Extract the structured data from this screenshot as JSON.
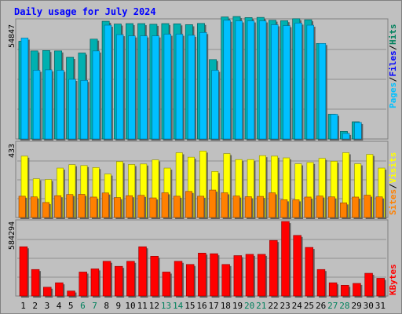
{
  "title": "Daily usage for July 2024",
  "colors": {
    "background": "#c0c0c0",
    "border": "#808080",
    "title": "#0000ff",
    "hits": "#00805c",
    "files": "#0000ff",
    "pages": "#00c0ff",
    "visits": "#ffff00",
    "sites": "#ff8000",
    "kbytes": "#ff0000",
    "weekend_label": "#00805c",
    "weekday_label": "#000000"
  },
  "chart_data": [
    {
      "type": "bar",
      "categories": [
        "1",
        "2",
        "3",
        "4",
        "5",
        "6",
        "7",
        "8",
        "9",
        "10",
        "11",
        "12",
        "13",
        "14",
        "15",
        "16",
        "17",
        "18",
        "19",
        "20",
        "21",
        "22",
        "23",
        "24",
        "25",
        "26",
        "27",
        "28",
        "29",
        "30",
        "31"
      ],
      "weekend_days": [
        "6",
        "7",
        "13",
        "14",
        "20",
        "21",
        "27",
        "28"
      ],
      "max_label": "54847",
      "ylim": [
        0,
        54847
      ],
      "series": [
        {
          "name": "Hits",
          "values": [
            45500,
            41000,
            41200,
            41000,
            38000,
            40000,
            46500,
            54800,
            53500,
            53700,
            53700,
            53400,
            53700,
            53600,
            53200,
            53800,
            37000,
            56800,
            57000,
            56500,
            56600,
            55300,
            55100,
            56000,
            55500,
            44500,
            11500,
            3500,
            8000,
            0,
            0
          ]
        },
        {
          "name": "Files",
          "values": [
            45500,
            41000,
            41200,
            41000,
            38000,
            40000,
            46500,
            54800,
            53500,
            53700,
            53700,
            53400,
            53700,
            53600,
            53200,
            53800,
            37000,
            56800,
            57000,
            56500,
            56600,
            55300,
            55100,
            56000,
            55500,
            44500,
            11500,
            3500,
            8000,
            0,
            0
          ]
        },
        {
          "name": "Pages",
          "values": [
            47000,
            32000,
            32200,
            32000,
            27800,
            27300,
            41000,
            53000,
            48600,
            48000,
            48000,
            48000,
            48800,
            48800,
            48300,
            49600,
            32000,
            55300,
            55000,
            55000,
            55000,
            53200,
            52800,
            54000,
            53000,
            44500,
            11500,
            2600,
            7700,
            0,
            0
          ]
        }
      ]
    },
    {
      "type": "bar",
      "categories": [
        "1",
        "2",
        "3",
        "4",
        "5",
        "6",
        "7",
        "8",
        "9",
        "10",
        "11",
        "12",
        "13",
        "14",
        "15",
        "16",
        "17",
        "18",
        "19",
        "20",
        "21",
        "22",
        "23",
        "24",
        "25",
        "26",
        "27",
        "28",
        "29",
        "30",
        "31"
      ],
      "max_label": "433",
      "ylim": [
        0,
        433
      ],
      "series": [
        {
          "name": "Visits",
          "values": [
            360,
            227,
            223,
            290,
            310,
            305,
            293,
            255,
            328,
            311,
            314,
            338,
            290,
            380,
            354,
            390,
            270,
            375,
            340,
            340,
            363,
            360,
            350,
            315,
            323,
            347,
            330,
            380,
            315,
            370,
            290
          ]
        },
        {
          "name": "Sites",
          "values": [
            125,
            121,
            88,
            128,
            135,
            136,
            120,
            144,
            117,
            128,
            130,
            115,
            145,
            125,
            153,
            125,
            161,
            145,
            126,
            122,
            124,
            145,
            104,
            104,
            120,
            126,
            121,
            86,
            120,
            131,
            121
          ]
        }
      ]
    },
    {
      "type": "bar",
      "categories": [
        "1",
        "2",
        "3",
        "4",
        "5",
        "6",
        "7",
        "8",
        "9",
        "10",
        "11",
        "12",
        "13",
        "14",
        "15",
        "16",
        "17",
        "18",
        "19",
        "20",
        "21",
        "22",
        "23",
        "24",
        "25",
        "26",
        "27",
        "28",
        "29",
        "30",
        "31"
      ],
      "max_label": "584294",
      "ylim": [
        0,
        584294
      ],
      "series": [
        {
          "name": "KBytes",
          "values": [
            390000,
            210000,
            70000,
            105000,
            40000,
            190000,
            215000,
            275000,
            235000,
            275000,
            390000,
            315000,
            190000,
            275000,
            250000,
            340000,
            335000,
            250000,
            320000,
            330000,
            330000,
            440000,
            590000,
            480000,
            385000,
            210000,
            105000,
            85000,
            100000,
            180000,
            140000
          ]
        }
      ]
    }
  ]
}
